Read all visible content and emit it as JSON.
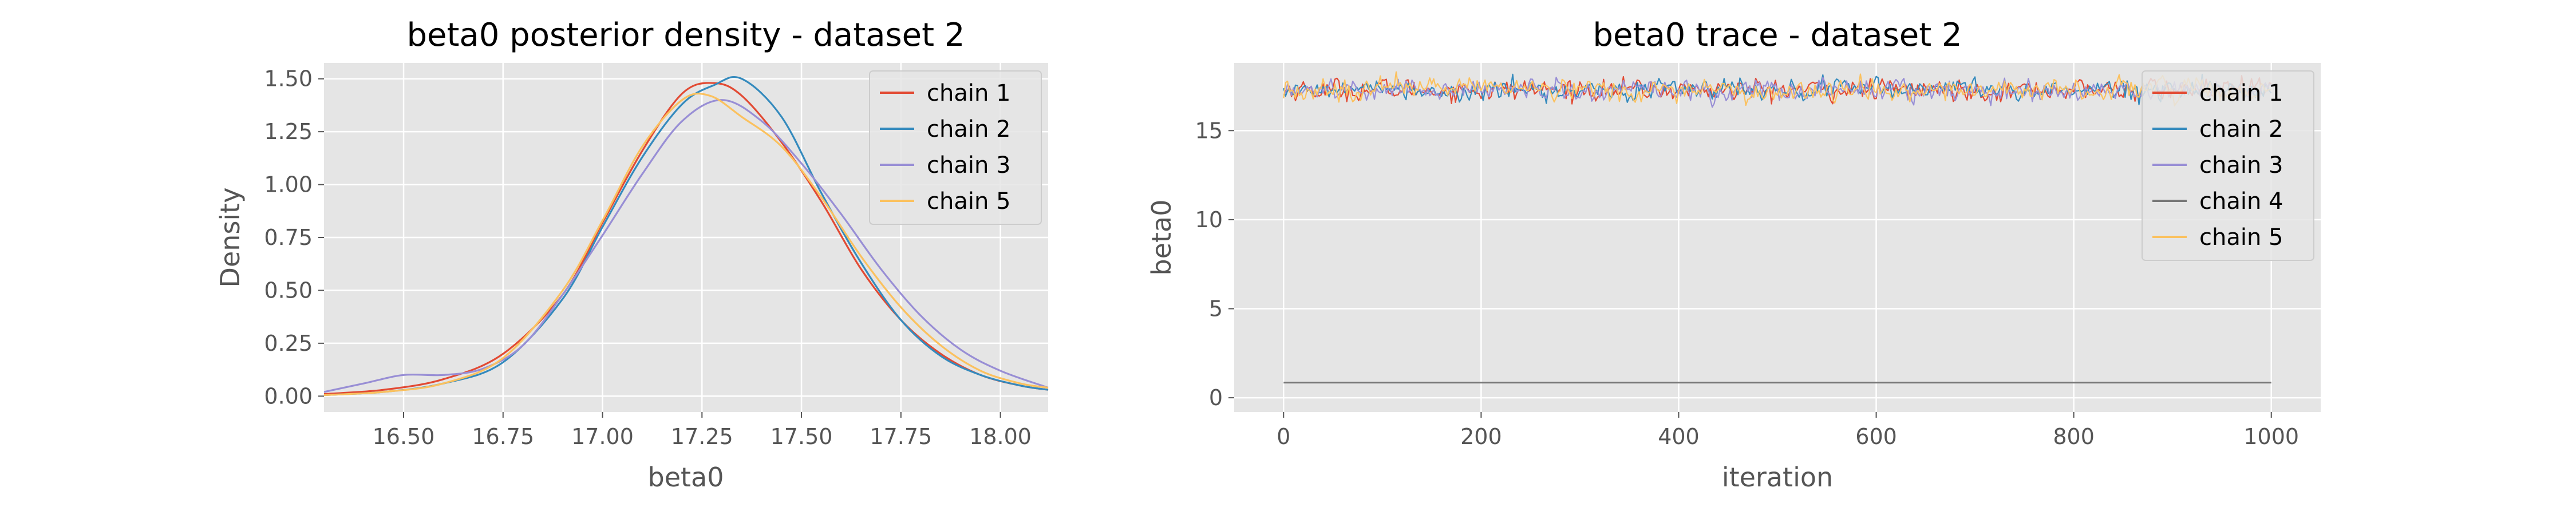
{
  "chart_data": [
    {
      "type": "line",
      "title": "beta0 posterior density - dataset 2",
      "xlabel": "beta0",
      "ylabel": "Density",
      "xlim": [
        16.3,
        18.12
      ],
      "ylim": [
        -0.075,
        1.575
      ],
      "xticks": [
        16.5,
        16.75,
        17.0,
        17.25,
        17.5,
        17.75,
        18.0
      ],
      "xtick_labels": [
        "16.50",
        "16.75",
        "17.00",
        "17.25",
        "17.50",
        "17.75",
        "18.00"
      ],
      "yticks": [
        0.0,
        0.25,
        0.5,
        0.75,
        1.0,
        1.25,
        1.5
      ],
      "ytick_labels": [
        "0.00",
        "0.25",
        "0.50",
        "0.75",
        "1.00",
        "1.25",
        "1.50"
      ],
      "grid": true,
      "legend_position": "top-right",
      "series": [
        {
          "name": "chain 1",
          "color": "#E24A33",
          "x": [
            16.3,
            16.45,
            16.6,
            16.75,
            16.9,
            17.0,
            17.1,
            17.2,
            17.28,
            17.35,
            17.45,
            17.55,
            17.65,
            17.75,
            17.85,
            17.95,
            18.05,
            18.12
          ],
          "y": [
            0.01,
            0.03,
            0.08,
            0.2,
            0.48,
            0.82,
            1.16,
            1.43,
            1.48,
            1.42,
            1.2,
            0.92,
            0.6,
            0.36,
            0.2,
            0.1,
            0.05,
            0.03
          ]
        },
        {
          "name": "chain 2",
          "color": "#348ABD",
          "x": [
            16.3,
            16.45,
            16.6,
            16.75,
            16.9,
            17.0,
            17.1,
            17.2,
            17.28,
            17.35,
            17.45,
            17.55,
            17.65,
            17.75,
            17.85,
            17.95,
            18.05,
            18.12
          ],
          "y": [
            0.005,
            0.02,
            0.06,
            0.16,
            0.46,
            0.8,
            1.13,
            1.38,
            1.47,
            1.5,
            1.32,
            0.96,
            0.63,
            0.36,
            0.19,
            0.1,
            0.05,
            0.03
          ]
        },
        {
          "name": "chain 3",
          "color": "#988ED5",
          "x": [
            16.3,
            16.4,
            16.5,
            16.6,
            16.7,
            16.8,
            16.9,
            17.0,
            17.1,
            17.2,
            17.3,
            17.4,
            17.5,
            17.6,
            17.7,
            17.8,
            17.9,
            18.0,
            18.12
          ],
          "y": [
            0.02,
            0.06,
            0.1,
            0.1,
            0.13,
            0.24,
            0.48,
            0.76,
            1.05,
            1.3,
            1.4,
            1.3,
            1.1,
            0.86,
            0.6,
            0.38,
            0.22,
            0.12,
            0.04
          ]
        },
        {
          "name": "chain 5",
          "color": "#FBC15E",
          "x": [
            16.3,
            16.45,
            16.6,
            16.75,
            16.9,
            17.0,
            17.1,
            17.2,
            17.27,
            17.35,
            17.45,
            17.55,
            17.65,
            17.75,
            17.85,
            17.95,
            18.05,
            18.12
          ],
          "y": [
            0.005,
            0.02,
            0.06,
            0.18,
            0.5,
            0.83,
            1.18,
            1.4,
            1.42,
            1.32,
            1.18,
            0.94,
            0.66,
            0.42,
            0.24,
            0.12,
            0.06,
            0.04
          ]
        }
      ]
    },
    {
      "type": "line",
      "title": "beta0 trace - dataset 2",
      "xlabel": "iteration",
      "ylabel": "beta0",
      "xlim": [
        -50,
        1050
      ],
      "ylim": [
        -0.8,
        18.8
      ],
      "xticks": [
        0,
        200,
        400,
        600,
        800,
        1000
      ],
      "xtick_labels": [
        "0",
        "200",
        "400",
        "600",
        "800",
        "1000"
      ],
      "yticks": [
        0,
        5,
        10,
        15
      ],
      "ytick_labels": [
        "0",
        "5",
        "10",
        "15"
      ],
      "grid": true,
      "legend_position": "top-right",
      "iterations": [
        0,
        1000
      ],
      "series": [
        {
          "name": "chain 1",
          "color": "#E24A33",
          "mean": 17.3,
          "sd": 0.28
        },
        {
          "name": "chain 2",
          "color": "#348ABD",
          "mean": 17.3,
          "sd": 0.27
        },
        {
          "name": "chain 3",
          "color": "#988ED5",
          "mean": 17.28,
          "sd": 0.29
        },
        {
          "name": "chain 4",
          "color": "#777777",
          "mean": 0.85,
          "sd": 0.0
        },
        {
          "name": "chain 5",
          "color": "#FBC15E",
          "mean": 17.3,
          "sd": 0.28
        }
      ]
    }
  ]
}
